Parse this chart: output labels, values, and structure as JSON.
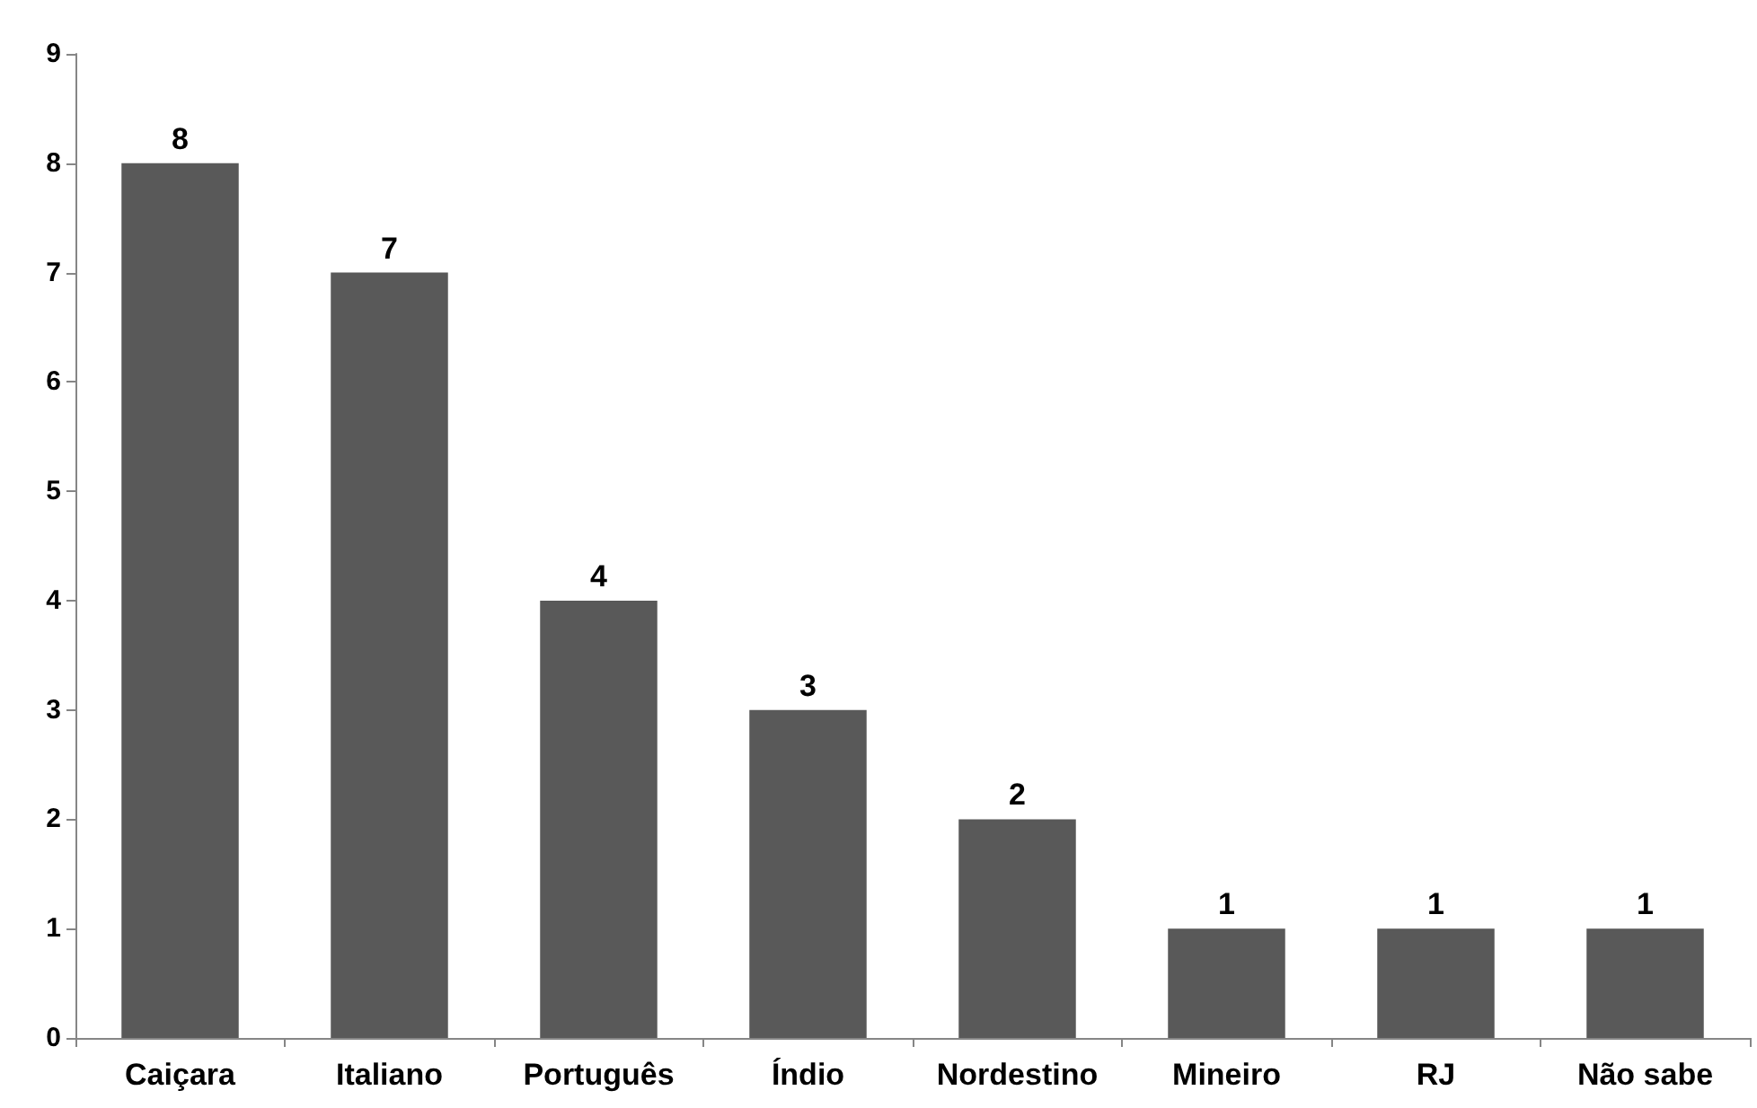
{
  "chart_data": {
    "type": "bar",
    "categories": [
      "Caiçara",
      "Italiano",
      "Português",
      "Índio",
      "Nordestino",
      "Mineiro",
      "RJ",
      "Não sabe"
    ],
    "values": [
      8,
      7,
      4,
      3,
      2,
      1,
      1,
      1
    ],
    "color": "#595959",
    "ylim": [
      0,
      9
    ],
    "yticks": [
      0,
      1,
      2,
      3,
      4,
      5,
      6,
      7,
      8,
      9
    ],
    "grid": false,
    "data_labels": true
  }
}
